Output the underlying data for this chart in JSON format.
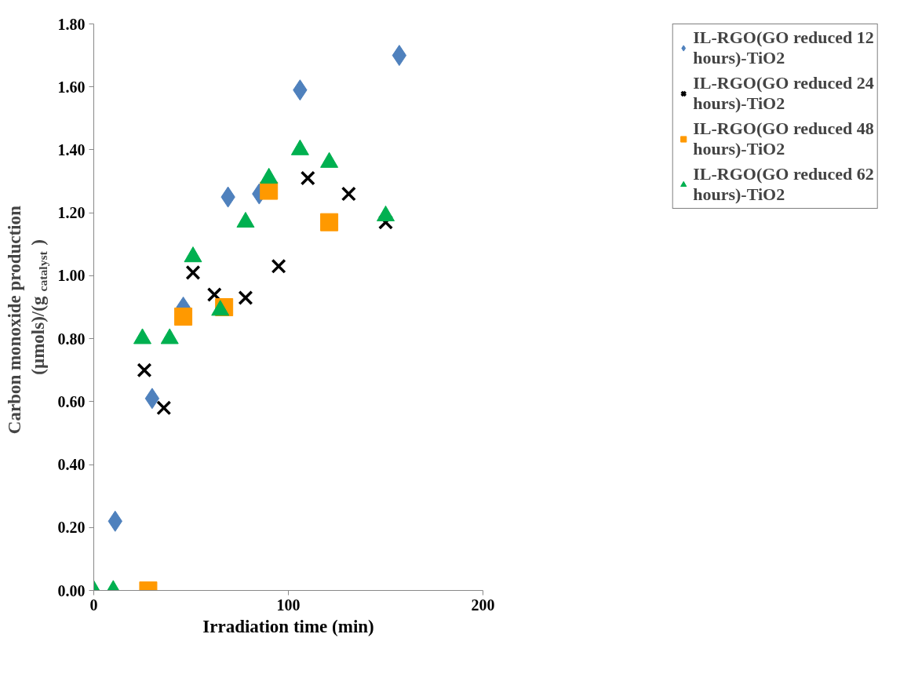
{
  "chart_data": {
    "type": "scatter",
    "xlabel": "Irradiation time (min)",
    "ylabel": "Carbon monoxide production (µmols)/(g$_{catalyst}$)",
    "xlim": [
      0,
      200
    ],
    "ylim": [
      0,
      1.8
    ],
    "xticks": [
      0,
      100,
      200
    ],
    "yticks": [
      {
        "value": 0,
        "label": "0.00"
      },
      {
        "value": 0.2,
        "label": "0.20"
      },
      {
        "value": 0.4,
        "label": "0.40"
      },
      {
        "value": 0.6,
        "label": "0.60"
      },
      {
        "value": 0.8,
        "label": "0.80"
      },
      {
        "value": 1.0,
        "label": "1.00"
      },
      {
        "value": 1.2,
        "label": "1.20"
      },
      {
        "value": 1.4,
        "label": "1.40"
      },
      {
        "value": 1.6,
        "label": "1.60"
      },
      {
        "value": 1.8,
        "label": "1.80"
      }
    ],
    "grid": false,
    "legend": "top right",
    "series": [
      {
        "name": "IL-RGO(GO reduced 12 hours)-TiO2",
        "color": "#4f81bd",
        "marker": "diamond",
        "x": [
          11,
          30,
          46,
          69,
          85,
          106,
          157
        ],
        "values": [
          0.22,
          0.61,
          0.9,
          1.25,
          1.26,
          1.59,
          1.7
        ]
      },
      {
        "name": "IL-RGO(GO reduced 24 hours)-TiO2",
        "color": "#000000",
        "marker": "cross",
        "x": [
          26,
          36,
          51,
          62,
          78,
          95,
          110,
          131,
          150
        ],
        "values": [
          0.7,
          0.58,
          1.01,
          0.94,
          0.93,
          1.03,
          1.31,
          1.26,
          1.17
        ]
      },
      {
        "name": "IL-RGO(GO reduced 48 hours)-TiO2",
        "color": "#ff9900",
        "marker": "square",
        "x": [
          28,
          46,
          67,
          90,
          121
        ],
        "values": [
          0,
          0.87,
          0.9,
          1.27,
          1.17
        ]
      },
      {
        "name": "IL-RGO(GO reduced 62 hours)-TiO2",
        "color": "#00b050",
        "marker": "triangle",
        "x": [
          0,
          10,
          25,
          39,
          51,
          65,
          78,
          90,
          106,
          121,
          150
        ],
        "values": [
          0,
          0,
          0.8,
          0.8,
          1.06,
          0.89,
          1.17,
          1.31,
          1.4,
          1.36,
          1.19
        ]
      }
    ]
  }
}
